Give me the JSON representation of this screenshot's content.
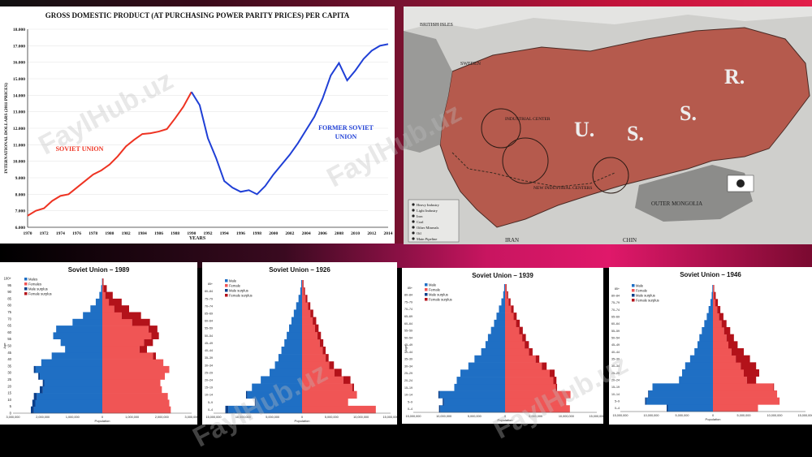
{
  "watermark": "FaylHub.uz",
  "gdp": {
    "title": "GROSS DOMESTIC PRODUCT (AT PURCHASING POWER PARITY PRICES) PER CAPITA",
    "ylabel": "INTERNATIONAL DOLLARS (2011 PRICES)",
    "xlabel": "YEARS",
    "label_soviet": "SOVIET UNION",
    "label_former_1": "FORMER SOVIET",
    "label_former_2": "UNION",
    "colors": {
      "soviet": "#ee3322",
      "former": "#1f3fd6"
    }
  },
  "map": {
    "labels": {
      "british_isles": "BRITISH ISLES",
      "sweden": "SWEDEN",
      "industrial_center": "INDUSTRIAL CENTER",
      "new_industrial_centers": "NEW INDUSTRIAL CENTERS",
      "u": "U.",
      "s": "S.",
      "s2": "S.",
      "r": "R.",
      "outer_mongolia": "OUTER MONGOLIA",
      "iran": "IRAN",
      "china": "CHIN"
    },
    "legend": [
      "Heavy Industry",
      "Light Industry",
      "Iron",
      "Coal",
      "Other Minerals",
      "Oil",
      "Main Pipeline"
    ]
  },
  "pyramid_common": {
    "legend": [
      "Males",
      "Females",
      "Male surplus",
      "Female surplus"
    ],
    "legend_short": [
      "Male",
      "Female",
      "Male surplus",
      "Female surplus"
    ],
    "xlabel": "Population",
    "ylabel": "Age",
    "colors": {
      "male": "#1f6fc4",
      "female": "#f05555",
      "male_surplus": "#0b3f8a",
      "female_surplus": "#b3121a"
    }
  },
  "chart_data": [
    {
      "type": "line",
      "title": "GROSS DOMESTIC PRODUCT (AT PURCHASING POWER PARITY PRICES) PER CAPITA",
      "xlabel": "YEARS",
      "ylabel": "INTERNATIONAL DOLLARS (2011 PRICES)",
      "xlim": [
        1970,
        2014
      ],
      "ylim": [
        6000,
        18000
      ],
      "x_ticks": [
        1970,
        1972,
        1974,
        1976,
        1978,
        1980,
        1982,
        1984,
        1986,
        1988,
        1990,
        1992,
        1994,
        1996,
        1998,
        2000,
        2002,
        2004,
        2006,
        2008,
        2010,
        2012,
        2014
      ],
      "y_ticks": [
        "6.000",
        "7.000",
        "8.000",
        "9.000",
        "10.000",
        "11.000",
        "12.000",
        "13.000",
        "14.000",
        "15.000",
        "16.000",
        "17.000",
        "18.000"
      ],
      "y_tick_values": [
        6000,
        7000,
        8000,
        9000,
        10000,
        11000,
        12000,
        13000,
        14000,
        15000,
        16000,
        17000,
        18000
      ],
      "series": [
        {
          "name": "SOVIET UNION",
          "x": [
            1970,
            1971,
            1972,
            1973,
            1974,
            1975,
            1976,
            1977,
            1978,
            1979,
            1980,
            1981,
            1982,
            1983,
            1984,
            1985,
            1986,
            1987,
            1988,
            1989,
            1990
          ],
          "y": [
            6700,
            7000,
            7150,
            7600,
            7900,
            8000,
            8400,
            8800,
            9200,
            9450,
            9800,
            10300,
            10900,
            11300,
            11650,
            11700,
            11800,
            11950,
            12600,
            13300,
            14200
          ]
        },
        {
          "name": "FORMER SOVIET UNION",
          "x": [
            1990,
            1991,
            1992,
            1993,
            1994,
            1995,
            1996,
            1997,
            1998,
            1999,
            2000,
            2001,
            2002,
            2003,
            2004,
            2005,
            2006,
            2007,
            2008,
            2009,
            2010,
            2011,
            2012,
            2013,
            2014
          ],
          "y": [
            14200,
            13400,
            11400,
            10200,
            8800,
            8400,
            8150,
            8250,
            8000,
            8500,
            9200,
            9800,
            10400,
            11100,
            11900,
            12700,
            13800,
            15200,
            15950,
            14900,
            15500,
            16200,
            16700,
            17000,
            17100
          ]
        }
      ]
    },
    {
      "type": "bar",
      "title": "Soviet Union – 1989",
      "xlabel": "Population",
      "ylabel": "Age",
      "xlim": [
        -3000000,
        3000000
      ],
      "x_tick_labels": [
        "3,000,000",
        "2,000,000",
        "1,000,000",
        "0",
        "1,000,000",
        "2,000,000",
        "3,000,000"
      ],
      "x_tick_values": [
        -3000000,
        -2000000,
        -1000000,
        0,
        1000000,
        2000000,
        3000000
      ],
      "y_ticks": [
        "0",
        "5",
        "10",
        "15",
        "20",
        "25",
        "30",
        "35",
        "40",
        "45",
        "50",
        "55",
        "60",
        "65",
        "70",
        "75",
        "80",
        "85",
        "90",
        "95",
        "100+"
      ],
      "y_tick_values": [
        0,
        5,
        10,
        15,
        20,
        25,
        30,
        35,
        40,
        45,
        50,
        55,
        60,
        65,
        70,
        75,
        80,
        85,
        90,
        95,
        100
      ],
      "ages": [
        0,
        5,
        10,
        15,
        20,
        25,
        30,
        35,
        40,
        45,
        50,
        55,
        60,
        65,
        70,
        75,
        80,
        85,
        90,
        95
      ],
      "male": [
        2400000,
        2350000,
        2300000,
        2100000,
        2000000,
        2150000,
        2300000,
        2050000,
        1700000,
        1250000,
        1400000,
        1650000,
        1550000,
        1000000,
        650000,
        400000,
        220000,
        100000,
        40000,
        10000
      ],
      "female": [
        2300000,
        2250000,
        2200000,
        2000000,
        1950000,
        2100000,
        2250000,
        2050000,
        1800000,
        1500000,
        1700000,
        1900000,
        1850000,
        1600000,
        1300000,
        900000,
        650000,
        350000,
        150000,
        40000
      ]
    },
    {
      "type": "bar",
      "title": "Soviet Union – 1926",
      "xlabel": "Population",
      "xlim": [
        -15000000,
        15000000
      ],
      "x_tick_labels": [
        "15,000,000",
        "10,000,000",
        "5,000,000",
        "0",
        "5,000,000",
        "10,000,000",
        "15,000,000"
      ],
      "x_tick_values": [
        -15000000,
        -10000000,
        -5000000,
        0,
        5000000,
        10000000,
        15000000
      ],
      "ages": [
        "0–4",
        "5–9",
        "10–14",
        "15–19",
        "20–24",
        "25–29",
        "30–34",
        "35–39",
        "40–44",
        "45–49",
        "50–54",
        "55–59",
        "60–64",
        "65–69",
        "70–74",
        "75–79",
        "80–84",
        "85+"
      ],
      "male": [
        13000000,
        8000000,
        9500000,
        8500000,
        7000000,
        5500000,
        4600000,
        4000000,
        3500000,
        3000000,
        2600000,
        2200000,
        1800000,
        1400000,
        1000000,
        600000,
        300000,
        150000
      ],
      "female": [
        12500000,
        7800000,
        9300000,
        8800000,
        8200000,
        6700000,
        5400000,
        4500000,
        4000000,
        3600000,
        3200000,
        2800000,
        2400000,
        1900000,
        1400000,
        900000,
        500000,
        250000
      ]
    },
    {
      "type": "bar",
      "title": "Soviet Union – 1939",
      "xlabel": "Population",
      "xlim": [
        -15000000,
        15000000
      ],
      "x_tick_labels": [
        "15,000,000",
        "10,000,000",
        "5,000,000",
        "0",
        "5,000,000",
        "10,000,000",
        "15,000,000"
      ],
      "x_tick_values": [
        -15000000,
        -10000000,
        -5000000,
        0,
        5000000,
        10000000,
        15000000
      ],
      "ages": [
        "0–4",
        "5–9",
        "10–14",
        "15–19",
        "20–24",
        "25–29",
        "30–34",
        "35–39",
        "40–44",
        "45–49",
        "50–54",
        "55–59",
        "60–64",
        "65–69",
        "70–74",
        "75–79",
        "80–84",
        "85+"
      ],
      "male": [
        10800000,
        10200000,
        10900000,
        8300000,
        7900000,
        7300000,
        6000000,
        5000000,
        3900000,
        3200000,
        2800000,
        2300000,
        1800000,
        1400000,
        1000000,
        600000,
        300000,
        150000
      ],
      "female": [
        10600000,
        10000000,
        10700000,
        8500000,
        8400000,
        8100000,
        6800000,
        5600000,
        4500000,
        3900000,
        3400000,
        2900000,
        2400000,
        1900000,
        1400000,
        900000,
        500000,
        250000
      ]
    },
    {
      "type": "bar",
      "title": "Soviet Union – 1946",
      "xlabel": "Population",
      "xlim": [
        -15000000,
        15000000
      ],
      "x_tick_labels": [
        "15,000,000",
        "10,000,000",
        "5,000,000",
        "0",
        "5,000,000",
        "10,000,000",
        "15,000,000"
      ],
      "x_tick_values": [
        -15000000,
        -10000000,
        -5000000,
        0,
        5000000,
        10000000,
        15000000
      ],
      "ages": [
        "0–4",
        "5–9",
        "10–14",
        "15–19",
        "20–24",
        "25–29",
        "30–34",
        "35–39",
        "40–44",
        "45–49",
        "50–54",
        "55–59",
        "60–64",
        "65–69",
        "70–74",
        "75–79",
        "80–84",
        "85+"
      ],
      "male": [
        7500000,
        11000000,
        10500000,
        9800000,
        5500000,
        5000000,
        4500000,
        3700000,
        3000000,
        2500000,
        2200000,
        1800000,
        1400000,
        1000000,
        700000,
        400000,
        200000,
        100000
      ],
      "female": [
        7300000,
        10800000,
        10400000,
        9900000,
        7000000,
        7500000,
        7000000,
        6000000,
        5000000,
        4000000,
        3400000,
        2800000,
        2200000,
        1700000,
        1200000,
        800000,
        450000,
        200000
      ]
    }
  ]
}
